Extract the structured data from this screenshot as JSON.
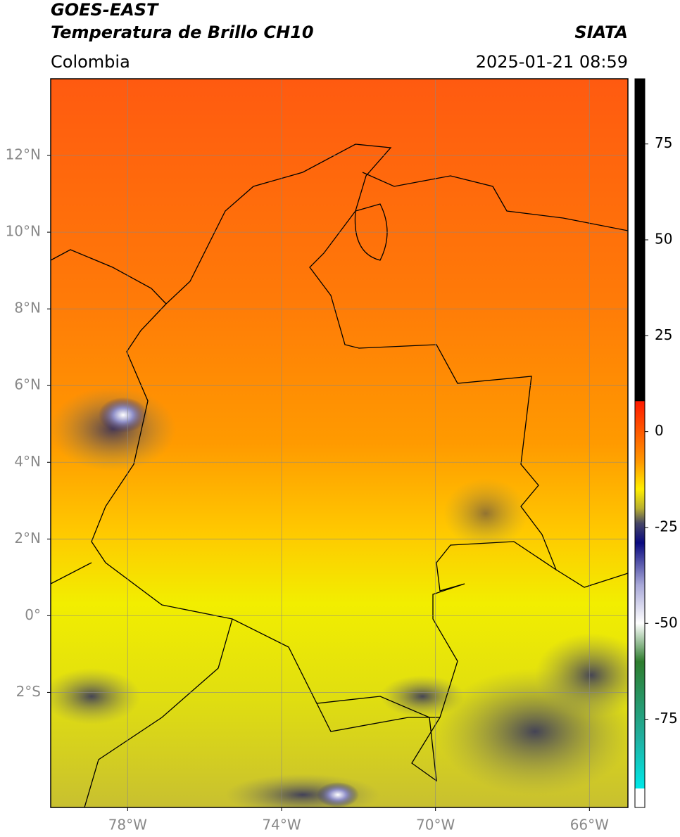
{
  "header": {
    "title": "GOES-EAST",
    "subtitle": "Temperatura de Brillo CH10",
    "agency": "SIATA",
    "region": "Colombia",
    "timestamp": "2025-01-21 08:59"
  },
  "map": {
    "xlim": [
      -80,
      -65
    ],
    "ylim": [
      -5,
      14
    ],
    "grid": true,
    "xticks": [
      {
        "value": -78,
        "label": "78°W"
      },
      {
        "value": -74,
        "label": "74°W"
      },
      {
        "value": -70,
        "label": "70°W"
      },
      {
        "value": -66,
        "label": "66°W"
      }
    ],
    "yticks": [
      {
        "value": 12,
        "label": "12°N"
      },
      {
        "value": 10,
        "label": "10°N"
      },
      {
        "value": 8,
        "label": "8°N"
      },
      {
        "value": 6,
        "label": "6°N"
      },
      {
        "value": 4,
        "label": "4°N"
      },
      {
        "value": 2,
        "label": "2°N"
      },
      {
        "value": 0,
        "label": "0°"
      },
      {
        "value": -2,
        "label": "2°S"
      }
    ]
  },
  "colorbar": {
    "lim": [
      -98,
      92
    ],
    "ticks": [
      75,
      50,
      25,
      0,
      -25,
      -50,
      -75
    ],
    "stops": [
      {
        "value": 92,
        "color": "#000000"
      },
      {
        "value": 8,
        "color": "#000000"
      },
      {
        "value": 7.9,
        "color": "#ff1a00"
      },
      {
        "value": 0,
        "color": "#ff5a00"
      },
      {
        "value": -8,
        "color": "#ff9a00"
      },
      {
        "value": -15,
        "color": "#ffee00"
      },
      {
        "value": -20,
        "color": "#b8b030"
      },
      {
        "value": -24,
        "color": "#444466"
      },
      {
        "value": -29,
        "color": "#0a0a80"
      },
      {
        "value": -40,
        "color": "#a8a8d8"
      },
      {
        "value": -50,
        "color": "#ffffff"
      },
      {
        "value": -60,
        "color": "#2e7d2e"
      },
      {
        "value": -80,
        "color": "#20b0a0"
      },
      {
        "value": -93,
        "color": "#00e8e8"
      },
      {
        "value": -93.1,
        "color": "#ffffff"
      },
      {
        "value": -98,
        "color": "#ffffff"
      }
    ]
  }
}
